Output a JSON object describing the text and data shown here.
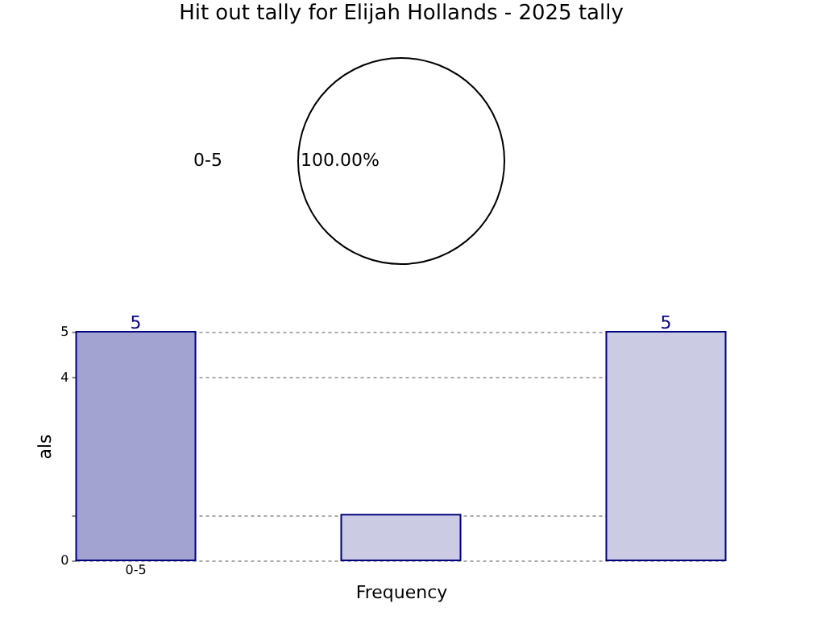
{
  "chart_data": [
    {
      "type": "pie",
      "title": "Hit out tally for Elijah Hollands - 2025 tally",
      "categories": [
        "0-5"
      ],
      "values": [
        100
      ],
      "colors": [
        "#ffffff"
      ],
      "value_labels": [
        "100.00%"
      ]
    },
    {
      "type": "bar",
      "categories": [
        "0-5",
        null,
        null
      ],
      "values": [
        5,
        1,
        5
      ],
      "colors": [
        "#a3a3d1",
        "#cbcbe3",
        "#cbcbe3"
      ],
      "value_labels": [
        "5",
        null,
        "5"
      ],
      "ylabel": "als",
      "xlabel": "Frequency",
      "ylim": [
        0,
        5
      ],
      "yticks": [
        0,
        {
          "value": 1,
          "label": null
        },
        4,
        5
      ],
      "grid": true
    }
  ]
}
